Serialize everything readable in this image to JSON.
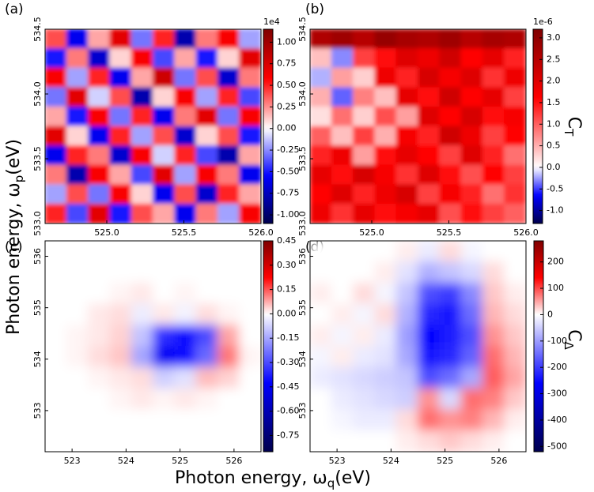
{
  "figure": {
    "xlabel": {
      "text": "Photon energy,  ω",
      "sub": "q",
      "unit": "(eV)"
    },
    "ylabel": {
      "text": "Photon energy,  ω",
      "sub": "p",
      "unit": "(eV)"
    }
  },
  "chart_data": [
    {
      "type": "heatmap",
      "panel_label": "(a)",
      "colormap": "seismic",
      "xlim": [
        524.6,
        526.0
      ],
      "xticks": [
        {
          "value": 525,
          "label": "525.0"
        },
        525.5,
        {
          "value": 526,
          "label": "526.0"
        }
      ],
      "ylim": [
        533.0,
        534.5
      ],
      "yticks": [
        {
          "value": 533,
          "label": "533.0"
        },
        533.5,
        {
          "value": 534,
          "label": "534.0"
        },
        534.5
      ],
      "clim": [
        -1.1,
        1.15
      ],
      "colorbar_offset": "1e4",
      "cticks": [
        {
          "value": 1,
          "label": "1.00"
        },
        0.75,
        {
          "value": 0.5,
          "label": "0.50"
        },
        0.25,
        {
          "value": 0,
          "label": "0.00"
        },
        -0.25,
        {
          "value": -0.5,
          "label": "-0.50"
        },
        -0.75,
        {
          "value": -1,
          "label": "-1.00"
        }
      ],
      "z": [
        [
          0.4,
          -0.6,
          0.2,
          0.7,
          -0.3,
          0.5,
          -0.8,
          0.3,
          0.6,
          -0.2
        ],
        [
          -0.5,
          0.3,
          -0.7,
          0.1,
          0.6,
          -0.4,
          0.2,
          -0.5,
          0.1,
          0.7
        ],
        [
          0.6,
          -0.2,
          0.5,
          -0.6,
          0.2,
          0.8,
          -0.3,
          0.4,
          -0.7,
          0.3
        ],
        [
          -0.3,
          0.7,
          -0.1,
          0.4,
          -0.8,
          0.1,
          0.6,
          -0.2,
          0.5,
          -0.4
        ],
        [
          0.2,
          -0.5,
          0.6,
          -0.3,
          0.5,
          -0.6,
          0.3,
          0.7,
          -0.3,
          0.6
        ],
        [
          0.7,
          0.1,
          -0.6,
          0.5,
          -0.2,
          0.4,
          -0.7,
          0.1,
          0.4,
          -0.5
        ],
        [
          -0.6,
          0.5,
          0.3,
          -0.7,
          0.6,
          -0.1,
          0.5,
          -0.4,
          -0.8,
          0.2
        ],
        [
          0.3,
          -0.8,
          0.6,
          0.2,
          -0.4,
          0.7,
          -0.2,
          0.6,
          0.3,
          -0.6
        ],
        [
          -0.2,
          0.4,
          -0.3,
          0.6,
          0.1,
          -0.6,
          0.4,
          -0.7,
          0.5,
          0.2
        ],
        [
          0.5,
          -0.4,
          0.7,
          -0.5,
          0.4,
          0.2,
          -0.6,
          0.3,
          -0.2,
          0.6
        ]
      ]
    },
    {
      "type": "heatmap",
      "panel_label": "(b)",
      "colormap": "seismic",
      "xlim": [
        524.6,
        526.0
      ],
      "xticks": [
        {
          "value": 525,
          "label": "525.0"
        },
        525.5,
        {
          "value": 526,
          "label": "526.0"
        }
      ],
      "ylim": [
        533.0,
        534.5
      ],
      "yticks": [
        {
          "value": 533,
          "label": "533.0"
        },
        533.5,
        {
          "value": 534,
          "label": "534.0"
        },
        534.5
      ],
      "clim": [
        -1.3,
        3.2
      ],
      "colorbar_offset": "1e-6",
      "colorbar_label": {
        "main": "C",
        "sub": "T"
      },
      "cticks": [
        {
          "value": 3,
          "label": "3.0"
        },
        2.5,
        {
          "value": 2,
          "label": "2.0"
        },
        1.5,
        {
          "value": 1,
          "label": "1.0"
        },
        0.5,
        {
          "value": 0,
          "label": "0.0"
        },
        -0.5,
        {
          "value": -1,
          "label": "-1.0"
        }
      ],
      "z": [
        [
          2.6,
          2.8,
          2.5,
          2.9,
          2.7,
          2.6,
          2.8,
          2.5,
          2.7,
          2.6
        ],
        [
          0.4,
          -0.3,
          1.2,
          1.5,
          2.0,
          1.8,
          2.2,
          1.6,
          1.9,
          1.4
        ],
        [
          -0.2,
          0.6,
          0.3,
          1.8,
          1.4,
          2.1,
          1.7,
          2.0,
          1.3,
          1.8
        ],
        [
          0.5,
          -0.4,
          0.8,
          0.4,
          1.9,
          1.5,
          2.2,
          1.6,
          1.9,
          1.2
        ],
        [
          0.2,
          0.9,
          0.3,
          1.1,
          0.6,
          2.0,
          1.6,
          2.1,
          1.5,
          1.7
        ],
        [
          1.0,
          0.4,
          1.2,
          0.5,
          1.7,
          1.4,
          2.2,
          1.8,
          1.2,
          1.6
        ],
        [
          1.4,
          1.8,
          0.6,
          1.5,
          1.9,
          1.6,
          1.2,
          2.0,
          1.4,
          0.9
        ],
        [
          1.9,
          1.5,
          2.1,
          1.7,
          1.3,
          2.0,
          1.5,
          1.1,
          1.6,
          1.2
        ],
        [
          1.6,
          2.0,
          1.4,
          1.8,
          2.1,
          1.2,
          1.7,
          1.4,
          0.9,
          1.3
        ],
        [
          1.8,
          1.3,
          1.9,
          1.5,
          1.7,
          1.9,
          1.1,
          1.5,
          1.2,
          1.0
        ]
      ]
    },
    {
      "type": "heatmap",
      "panel_label": "(c)",
      "colormap": "seismic",
      "xlim": [
        522.5,
        526.5
      ],
      "xticks": [
        523,
        524,
        525,
        526
      ],
      "ylim": [
        532.2,
        536.3
      ],
      "yticks": [
        533,
        534,
        535,
        536
      ],
      "clim": [
        -0.85,
        0.45
      ],
      "cticks": [
        0.45,
        {
          "value": 0.3,
          "label": "0.30"
        },
        0.15,
        {
          "value": 0,
          "label": "0.00"
        },
        -0.15,
        {
          "value": -0.3,
          "label": "-0.30"
        },
        -0.45,
        {
          "value": -0.6,
          "label": "-0.60"
        },
        -0.75
      ],
      "z": [
        [
          0,
          0,
          0,
          0,
          0,
          0,
          0,
          0,
          0,
          0
        ],
        [
          0,
          0,
          0,
          0,
          0,
          0,
          0,
          0,
          0,
          0
        ],
        [
          0,
          0,
          0,
          0.01,
          0.02,
          0,
          0.01,
          0,
          0,
          0
        ],
        [
          0,
          0,
          0.02,
          0.03,
          -0.03,
          0.02,
          -0.02,
          0.03,
          0.01,
          0
        ],
        [
          0,
          0.01,
          0.02,
          0.04,
          -0.1,
          -0.35,
          -0.4,
          -0.3,
          0.08,
          0
        ],
        [
          0,
          0.01,
          0.03,
          0.05,
          -0.15,
          -0.45,
          -0.4,
          -0.25,
          0.12,
          0.01
        ],
        [
          0,
          0,
          0.01,
          0.02,
          0.03,
          -0.08,
          -0.05,
          0.06,
          0.04,
          0
        ],
        [
          0,
          0,
          0,
          0.01,
          0.02,
          0.01,
          0.02,
          0.01,
          0,
          0
        ],
        [
          0,
          0,
          0,
          0,
          0,
          0,
          0,
          0,
          0,
          0
        ],
        [
          0,
          0,
          0,
          0,
          0,
          0,
          0,
          0,
          0,
          0
        ]
      ]
    },
    {
      "type": "heatmap",
      "panel_label": "(d)",
      "colormap": "seismic",
      "xlim": [
        522.5,
        526.5
      ],
      "xticks": [
        523,
        524,
        525,
        526
      ],
      "ylim": [
        532.2,
        536.3
      ],
      "yticks": [
        533,
        534,
        535,
        536
      ],
      "clim": [
        -520,
        280
      ],
      "colorbar_label": {
        "main": "C",
        "sub": "Δ"
      },
      "cticks": [
        200,
        100,
        0,
        -100,
        -200,
        -300,
        -400,
        -500
      ],
      "z": [
        [
          0,
          0,
          0,
          0,
          10,
          -20,
          20,
          -10,
          0,
          0
        ],
        [
          0,
          0,
          0,
          10,
          -30,
          -80,
          -60,
          -40,
          20,
          0
        ],
        [
          10,
          0,
          20,
          -10,
          -60,
          -180,
          -200,
          -120,
          30,
          10
        ],
        [
          0,
          10,
          -10,
          20,
          -80,
          -220,
          -240,
          -150,
          40,
          20
        ],
        [
          10,
          -10,
          10,
          -20,
          -100,
          -260,
          -230,
          -180,
          60,
          30
        ],
        [
          -10,
          10,
          -20,
          -30,
          -90,
          -240,
          -220,
          -160,
          80,
          40
        ],
        [
          -20,
          -30,
          -40,
          -50,
          -60,
          -180,
          -150,
          -90,
          90,
          50
        ],
        [
          0,
          -20,
          -30,
          -40,
          -50,
          60,
          -40,
          80,
          70,
          30
        ],
        [
          0,
          -10,
          -20,
          -20,
          20,
          80,
          60,
          70,
          40,
          10
        ],
        [
          0,
          0,
          0,
          0,
          10,
          20,
          30,
          20,
          10,
          0
        ]
      ]
    }
  ]
}
